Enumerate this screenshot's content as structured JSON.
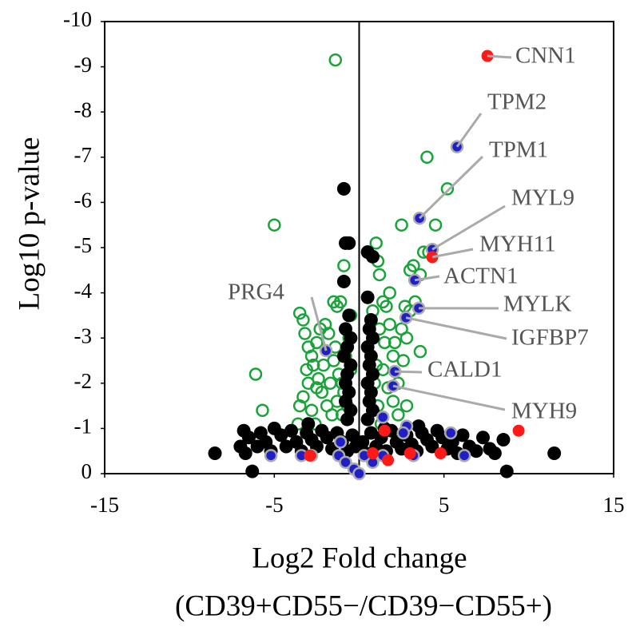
{
  "chart_data": {
    "type": "scatter",
    "ylabel": "Log10 p-value",
    "xlabel": [
      "Log2 Fold change",
      "(CD39+CD55−/CD39−CD55+)"
    ],
    "xlim": [
      -15,
      15
    ],
    "xticks": [
      -15,
      -5,
      5,
      15
    ],
    "ylim": [
      0,
      -10
    ],
    "yticks": [
      0,
      -1,
      -2,
      -3,
      -4,
      -5,
      -6,
      -7,
      -8,
      -9,
      -10
    ],
    "vline": 0,
    "series": [
      {
        "color": "#1aa33a",
        "marker": "open",
        "x": [
          -1.4,
          -5.0,
          -6.1,
          -5.7,
          -3.5,
          -3.3,
          -3.2,
          -3.0,
          -2.8,
          -3.5,
          -3.3,
          -3.0,
          -2.7,
          -2.5,
          -2.3,
          -2.0,
          -1.8,
          -1.5,
          -1.3,
          -1.1,
          -0.9,
          -1.5,
          -1.2,
          -1.0,
          -2.2,
          -1.9,
          -1.6,
          -2.5,
          -2.1,
          -1.7,
          -1.3,
          -0.9,
          -0.8,
          -0.6,
          -1.0,
          -2.8,
          -3.1,
          -2.4,
          -1.4,
          -0.7,
          1.0,
          1.1,
          1.2,
          0.8,
          1.4,
          1.6,
          1.8,
          1.2,
          1.5,
          2.1,
          2.0,
          2.6,
          1.4,
          2.3,
          1.0,
          1.7,
          2.0,
          2.3,
          1.1,
          2.5,
          3.2,
          3.6,
          3.0,
          3.8,
          3.3,
          2.7,
          3.0,
          4.1,
          4.5,
          4.0,
          5.2,
          2.8,
          3.6,
          1.8,
          2.5,
          0.9,
          -0.5,
          -0.5,
          1.3,
          2.8,
          -2.6,
          -3.6
        ],
        "values": [
          -9.15,
          -5.5,
          -2.2,
          -1.4,
          -3.55,
          -3.4,
          -3.1,
          -2.8,
          -2.6,
          -1.5,
          -1.7,
          -2.0,
          -2.4,
          -2.9,
          -3.2,
          -3.3,
          -3.1,
          -3.8,
          -3.7,
          -3.8,
          -4.6,
          -2.5,
          -2.2,
          -2.0,
          -1.8,
          -1.5,
          -1.3,
          -1.9,
          -2.4,
          -2.0,
          -1.6,
          -1.8,
          -2.6,
          -3.0,
          -1.3,
          -1.4,
          -2.3,
          -2.1,
          -2.8,
          -1.5,
          -5.1,
          -4.7,
          -4.4,
          -3.6,
          -3.8,
          -3.7,
          -3.3,
          -3.2,
          -2.9,
          -2.9,
          -2.6,
          -2.5,
          -2.3,
          -2.0,
          -2.4,
          -1.9,
          -1.6,
          -1.3,
          -1.5,
          -5.5,
          -4.6,
          -4.4,
          -4.5,
          -4.9,
          -3.8,
          -3.7,
          -3.6,
          -4.9,
          -5.5,
          -7.0,
          -6.3,
          -3.0,
          -2.7,
          -4.0,
          -3.2,
          -2.0,
          -2.3,
          -3.5,
          -1.1,
          -1.5,
          -1.1,
          -1.1
        ]
      },
      {
        "color": "#000000",
        "marker": "filled",
        "x": [
          -0.9,
          -0.8,
          -0.6,
          -0.9,
          0.5,
          0.8,
          0.5,
          -0.6,
          -0.8,
          -0.5,
          -0.7,
          -0.9,
          -0.5,
          -0.7,
          -0.8,
          -0.6,
          -0.8,
          -0.5,
          -0.7,
          0.6,
          0.8,
          0.5,
          0.7,
          0.6,
          0.8,
          0.5,
          0.7,
          0.6,
          0.8,
          0.5,
          0.7,
          -8.5,
          -6.3,
          -6.8,
          -6.5,
          -6.0,
          -5.8,
          -5.5,
          -5.2,
          -5.0,
          -4.6,
          -4.3,
          -4.0,
          -3.7,
          -3.4,
          -3.1,
          -2.8,
          -2.5,
          -2.2,
          -1.9,
          -1.6,
          -1.3,
          -1.0,
          -0.7,
          -0.4,
          -0.2,
          0.2,
          0.4,
          0.7,
          1.0,
          1.3,
          1.6,
          1.9,
          2.2,
          2.5,
          2.8,
          3.1,
          3.4,
          3.7,
          4.0,
          4.3,
          4.6,
          4.9,
          5.2,
          5.5,
          5.8,
          6.1,
          6.5,
          6.9,
          7.3,
          7.7,
          8.0,
          8.5,
          8.7,
          11.5,
          -7.0,
          -6.7,
          -3.0,
          1.5,
          3.5
        ],
        "values": [
          -6.3,
          -5.1,
          -5.1,
          -4.25,
          -4.9,
          -4.8,
          -3.9,
          -3.5,
          -3.2,
          -3.0,
          -2.8,
          -2.6,
          -2.4,
          -2.2,
          -2.0,
          -1.8,
          -1.6,
          -1.4,
          -1.2,
          -3.2,
          -3.0,
          -2.8,
          -2.6,
          -2.4,
          -2.2,
          -2.0,
          -1.8,
          -1.6,
          -1.4,
          -1.2,
          -3.4,
          -0.45,
          -0.05,
          -0.95,
          -0.8,
          -0.6,
          -0.9,
          -0.7,
          -0.5,
          -1.0,
          -0.85,
          -0.6,
          -0.95,
          -0.7,
          -0.5,
          -0.9,
          -0.75,
          -0.6,
          -0.95,
          -0.8,
          -0.55,
          -0.9,
          -0.7,
          -0.5,
          -0.85,
          -0.6,
          -0.7,
          -0.45,
          -0.9,
          -0.6,
          -0.8,
          -0.5,
          -0.95,
          -0.7,
          -0.55,
          -0.85,
          -0.65,
          -0.5,
          -0.9,
          -0.75,
          -0.6,
          -0.95,
          -0.8,
          -0.55,
          -0.7,
          -0.45,
          -0.85,
          -0.6,
          -0.5,
          -0.8,
          -0.55,
          -0.45,
          -0.75,
          -0.05,
          -0.45,
          -0.6,
          -0.45,
          -1.1,
          -1.0,
          -1.05
        ]
      },
      {
        "color": "#1f1fc8",
        "marker": "filled-outline",
        "x": [
          5.77,
          3.56,
          4.31,
          3.28,
          3.51,
          2.76,
          2.1,
          2.0,
          -1.95,
          1.4,
          2.8,
          2.6,
          5.4,
          6.2,
          3.2,
          -5.2,
          -3.4,
          -1.1,
          -1.2,
          -0.8,
          -0.3,
          0.0,
          0.8,
          1.4,
          -2.8,
          0.3
        ],
        "values": [
          -7.23,
          -5.65,
          -4.96,
          -4.28,
          -3.66,
          -3.45,
          -2.26,
          -1.94,
          -2.72,
          -1.25,
          -1.05,
          -0.9,
          -0.9,
          -0.4,
          -0.4,
          -0.4,
          -0.4,
          -0.7,
          -0.4,
          -0.25,
          -0.1,
          0.0,
          -0.25,
          -0.4,
          -0.4,
          -0.4
        ]
      },
      {
        "color": "#ff1a1a",
        "marker": "filled",
        "x": [
          7.56,
          4.31,
          9.4,
          1.5,
          -2.9,
          0.8,
          1.7,
          3.0,
          4.8
        ],
        "values": [
          -9.24,
          -4.79,
          -0.95,
          -0.95,
          -0.4,
          -0.45,
          -0.3,
          -0.45,
          -0.45
        ]
      }
    ],
    "annotations": [
      {
        "label": "CNN1",
        "x": 7.56,
        "y": -9.24
      },
      {
        "label": "TPM2",
        "x": 5.77,
        "y": -7.23
      },
      {
        "label": "TPM1",
        "x": 3.56,
        "y": -5.65
      },
      {
        "label": "MYL9",
        "x": 4.31,
        "y": -4.96
      },
      {
        "label": "MYH11",
        "x": 4.31,
        "y": -4.79
      },
      {
        "label": "ACTN1",
        "x": 3.28,
        "y": -4.28
      },
      {
        "label": "MYLK",
        "x": 3.51,
        "y": -3.66
      },
      {
        "label": "IGFBP7",
        "x": 2.76,
        "y": -3.45
      },
      {
        "label": "CALD1",
        "x": 2.1,
        "y": -2.26
      },
      {
        "label": "MYH9",
        "x": 2.0,
        "y": -1.94
      },
      {
        "label": "PRG4",
        "x": -1.95,
        "y": -2.72
      }
    ]
  }
}
